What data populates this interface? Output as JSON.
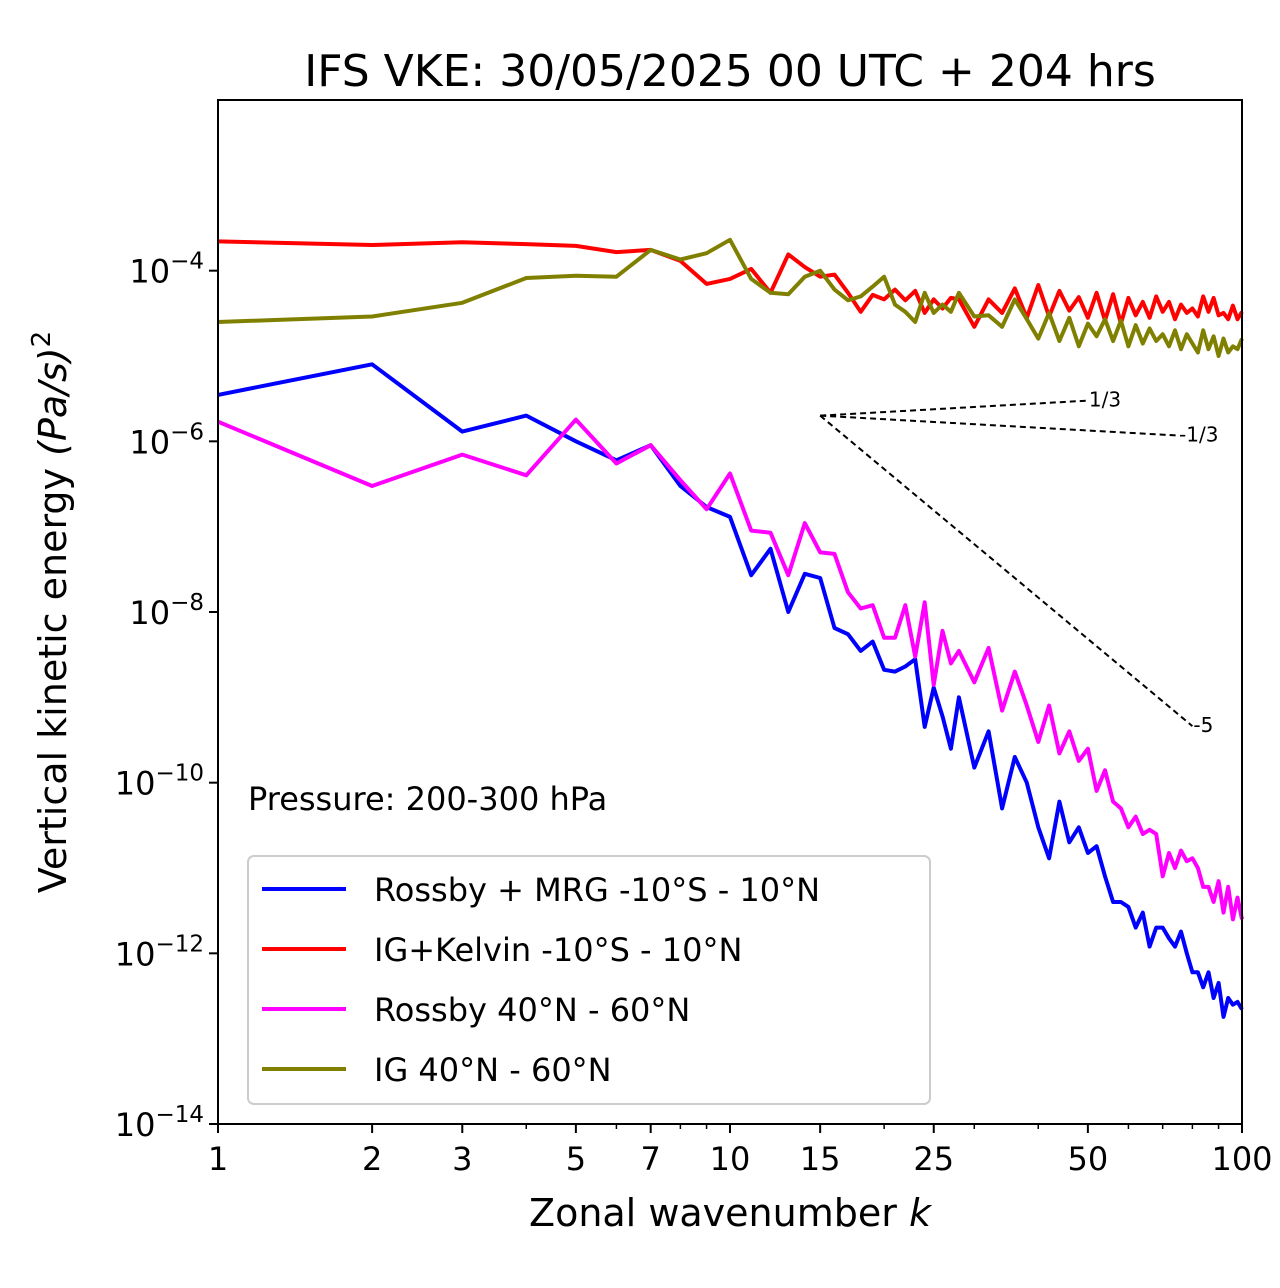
{
  "chart_data": {
    "type": "line",
    "title": "IFS VKE: 30/05/2025 00 UTC + 204 hrs",
    "xlabel": "Zonal wavenumber",
    "xlabel_var": "k",
    "ylabel": "Vertical kinetic energy",
    "ylabel_unit": "(Pa/s)",
    "ylabel_exp": "2",
    "xscale": "log",
    "yscale": "log",
    "xlim": [
      1,
      100
    ],
    "ylim": [
      1e-14,
      0.01
    ],
    "xticks": [
      1,
      2,
      3,
      5,
      7,
      10,
      15,
      25,
      50,
      100
    ],
    "yticks": [
      {
        "value": 0.0001,
        "base": "10",
        "exp": "−4"
      },
      {
        "value": 1e-06,
        "base": "10",
        "exp": "−6"
      },
      {
        "value": 1e-08,
        "base": "10",
        "exp": "−8"
      },
      {
        "value": 1e-10,
        "base": "10",
        "exp": "−10"
      },
      {
        "value": 1e-12,
        "base": "10",
        "exp": "−12"
      },
      {
        "value": 1e-14,
        "base": "10",
        "exp": "−14"
      }
    ],
    "annotation": "Pressure: 200-300 hPa",
    "legend_position": "lower-left",
    "reference_slopes": [
      {
        "label": "1/3",
        "x": [
          15,
          50
        ],
        "y": [
          2e-06,
          3e-06
        ]
      },
      {
        "label": "-1/3",
        "x": [
          15,
          75
        ],
        "y": [
          2e-06,
          1.17e-06
        ]
      },
      {
        "label": "-5",
        "x": [
          15,
          80
        ],
        "y": [
          2e-06,
          4.6e-10
        ]
      }
    ],
    "series": [
      {
        "name": "Rossby + MRG -10°S - 10°N",
        "color": "#0000ff",
        "x": [
          1,
          2,
          3,
          4,
          5,
          6,
          7,
          8,
          9,
          10,
          11,
          12,
          13,
          14,
          15,
          16,
          17,
          18,
          19,
          20,
          21,
          22,
          23,
          24,
          25,
          26,
          27,
          28,
          30,
          32,
          34,
          36,
          38,
          40,
          42,
          44,
          46,
          48,
          50,
          52,
          54,
          56,
          58,
          60,
          62,
          64,
          66,
          68,
          70,
          72,
          74,
          76,
          78,
          80,
          82,
          84,
          86,
          88,
          90,
          92,
          94,
          96,
          98,
          100
        ],
        "y": [
          3.5e-06,
          8e-06,
          1.3e-06,
          2e-06,
          1e-06,
          6e-07,
          9e-07,
          3e-07,
          1.7e-07,
          1.3e-07,
          2.7e-08,
          5.5e-08,
          1e-08,
          2.8e-08,
          2.5e-08,
          6.5e-09,
          5.5e-09,
          3.5e-09,
          4.5e-09,
          2.1e-09,
          2e-09,
          2.3e-09,
          2.8e-09,
          4.5e-10,
          1.3e-09,
          6e-10,
          2.5e-10,
          1e-09,
          1.5e-10,
          4e-10,
          5e-11,
          2e-10,
          1e-10,
          3e-11,
          1.3e-11,
          6e-11,
          2e-11,
          3e-11,
          1.5e-11,
          1.8e-11,
          8e-12,
          4e-12,
          4e-12,
          3.5e-12,
          2e-12,
          3e-12,
          1.2e-12,
          2e-12,
          2e-12,
          1.5e-12,
          1.2e-12,
          1.8e-12,
          1e-12,
          6e-13,
          6e-13,
          4e-13,
          6e-13,
          3e-13,
          4.5e-13,
          1.8e-13,
          3e-13,
          2.5e-13,
          2.7e-13,
          2.2e-13
        ]
      },
      {
        "name": "IG+Kelvin -10°S - 10°N",
        "color": "#ff0000",
        "x": [
          1,
          2,
          3,
          4,
          5,
          6,
          7,
          8,
          9,
          10,
          11,
          12,
          13,
          14,
          15,
          16,
          17,
          18,
          19,
          20,
          21,
          22,
          23,
          24,
          25,
          26,
          27,
          28,
          30,
          32,
          34,
          36,
          38,
          40,
          42,
          44,
          46,
          48,
          50,
          52,
          54,
          56,
          58,
          60,
          62,
          64,
          66,
          68,
          70,
          72,
          74,
          76,
          78,
          80,
          82,
          84,
          86,
          88,
          90,
          92,
          94,
          96,
          98,
          100
        ],
        "y": [
          0.00022,
          0.0002,
          0.000215,
          0.000205,
          0.000195,
          0.000165,
          0.000175,
          0.00013,
          7e-05,
          8e-05,
          0.000105,
          5.5e-05,
          0.000155,
          0.00011,
          8.5e-05,
          9e-05,
          5.5e-05,
          3.3e-05,
          5.2e-05,
          4.6e-05,
          6e-05,
          4.5e-05,
          5.8e-05,
          3.2e-05,
          4.6e-05,
          3.6e-05,
          4.8e-05,
          4.6e-05,
          2.2e-05,
          4.6e-05,
          3.2e-05,
          6.2e-05,
          2.8e-05,
          6.8e-05,
          2.9e-05,
          5.8e-05,
          3.4e-05,
          4.9e-05,
          2.8e-05,
          5.5e-05,
          2.6e-05,
          5.3e-05,
          2.4e-05,
          4.8e-05,
          3e-05,
          4.3e-05,
          2.8e-05,
          5e-05,
          3.3e-05,
          4.3e-05,
          2.7e-05,
          4e-05,
          3.2e-05,
          3.6e-05,
          2.9e-05,
          5e-05,
          3.3e-05,
          4.8e-05,
          3e-05,
          3.2e-05,
          2.7e-05,
          3.9e-05,
          2.7e-05,
          3.3e-05
        ]
      },
      {
        "name": "Rossby 40°N - 60°N",
        "color": "#ff00ff",
        "x": [
          1,
          2,
          3,
          4,
          5,
          6,
          7,
          8,
          9,
          10,
          11,
          12,
          13,
          14,
          15,
          16,
          17,
          18,
          19,
          20,
          21,
          22,
          23,
          24,
          25,
          26,
          27,
          28,
          30,
          32,
          34,
          36,
          38,
          40,
          42,
          44,
          46,
          48,
          50,
          52,
          54,
          56,
          58,
          60,
          62,
          64,
          66,
          68,
          70,
          72,
          74,
          76,
          78,
          80,
          82,
          84,
          86,
          88,
          90,
          92,
          94,
          96,
          98,
          100
        ],
        "y": [
          1.7e-06,
          3e-07,
          7e-07,
          4e-07,
          1.8e-06,
          5.5e-07,
          9e-07,
          3.5e-07,
          1.6e-07,
          4.2e-07,
          9e-08,
          8.5e-08,
          2.7e-08,
          1.1e-07,
          5e-08,
          4.8e-08,
          1.7e-08,
          1.1e-08,
          1.2e-08,
          5e-09,
          5e-09,
          1.2e-08,
          3e-09,
          1.3e-08,
          1.4e-09,
          6e-09,
          2.5e-09,
          3.5e-09,
          1.5e-09,
          3.8e-09,
          7e-10,
          2e-09,
          8e-10,
          3e-10,
          8e-10,
          2.2e-10,
          4e-10,
          1.8e-10,
          2.5e-10,
          8e-11,
          1.4e-10,
          6e-11,
          5e-11,
          3e-11,
          4e-11,
          2.5e-11,
          2.8e-11,
          2.5e-11,
          8e-12,
          1.5e-11,
          1e-11,
          1.6e-11,
          1.2e-11,
          1.3e-11,
          1e-11,
          6e-12,
          6e-12,
          4e-12,
          7e-12,
          3e-12,
          6e-12,
          2.5e-12,
          4.5e-12,
          2.5e-12
        ]
      },
      {
        "name": "IG 40°N - 60°N",
        "color": "#808000",
        "x": [
          1,
          2,
          3,
          4,
          5,
          6,
          7,
          8,
          9,
          10,
          11,
          12,
          13,
          14,
          15,
          16,
          17,
          18,
          19,
          20,
          21,
          22,
          23,
          24,
          25,
          26,
          27,
          28,
          30,
          32,
          34,
          36,
          38,
          40,
          42,
          44,
          46,
          48,
          50,
          52,
          54,
          56,
          58,
          60,
          62,
          64,
          66,
          68,
          70,
          72,
          74,
          76,
          78,
          80,
          82,
          84,
          86,
          88,
          90,
          92,
          94,
          96,
          98,
          100
        ],
        "y": [
          2.5e-05,
          2.9e-05,
          4.2e-05,
          8.2e-05,
          8.7e-05,
          8.5e-05,
          0.000175,
          0.000135,
          0.00016,
          0.00023,
          8e-05,
          5.5e-05,
          5.3e-05,
          8.5e-05,
          0.0001,
          6e-05,
          4.5e-05,
          5e-05,
          6.5e-05,
          8.5e-05,
          4e-05,
          3.3e-05,
          2.5e-05,
          5.5e-05,
          3.2e-05,
          4e-05,
          3.3e-05,
          5.5e-05,
          2.9e-05,
          3e-05,
          2.2e-05,
          4.6e-05,
          2.7e-05,
          1.6e-05,
          3.2e-05,
          1.5e-05,
          2.8e-05,
          1.3e-05,
          2.4e-05,
          1.7e-05,
          2.7e-05,
          1.5e-05,
          2.6e-05,
          1.3e-05,
          2.3e-05,
          1.4e-05,
          2.1e-05,
          1.5e-05,
          1.8e-05,
          1.3e-05,
          2e-05,
          1.2e-05,
          1.8e-05,
          1.4e-05,
          1.1e-05,
          2e-05,
          1.2e-05,
          1.7e-05,
          1e-05,
          1.6e-05,
          1.1e-05,
          1.3e-05,
          1.2e-05,
          1.6e-05
        ]
      }
    ]
  }
}
